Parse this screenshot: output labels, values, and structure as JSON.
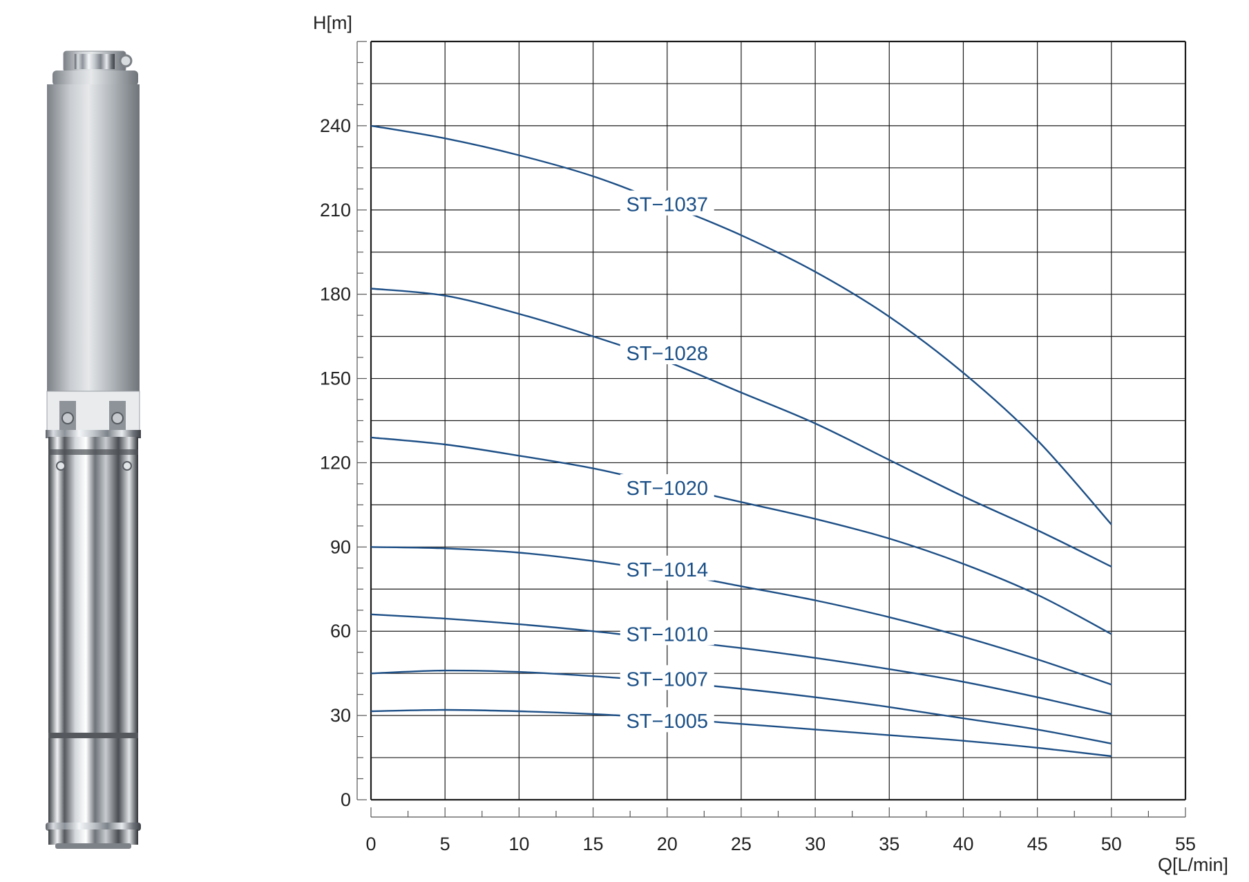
{
  "colors": {
    "curve": "#1d4f86",
    "grid": "#1a1a1a",
    "label": "#1a4f86",
    "text": "#222222"
  },
  "image": {
    "subject": "stainless steel submersible pump"
  },
  "chart_data": {
    "type": "line",
    "title": "",
    "xlabel": "Q[L/min]",
    "ylabel": "H[m]",
    "xlim": [
      0,
      55
    ],
    "ylim": [
      0,
      270
    ],
    "x_ticks": [
      0,
      5,
      10,
      15,
      20,
      25,
      30,
      35,
      40,
      45,
      50,
      55
    ],
    "y_ticks": [
      0,
      30,
      60,
      90,
      120,
      150,
      180,
      210,
      240
    ],
    "grid": true,
    "legend": "inline labels",
    "series": [
      {
        "name": "ST−1037",
        "label_at": [
          20,
          212
        ],
        "x": [
          0,
          5,
          10,
          15,
          20,
          25,
          30,
          35,
          40,
          45,
          50
        ],
        "y": [
          240,
          235.5,
          229.5,
          222,
          212,
          201,
          188,
          172,
          152,
          128,
          98
        ]
      },
      {
        "name": "ST−1028",
        "label_at": [
          20,
          159
        ],
        "x": [
          0,
          5,
          10,
          15,
          20,
          25,
          30,
          35,
          40,
          45,
          50
        ],
        "y": [
          182,
          179.5,
          173,
          165,
          156,
          145,
          134,
          121,
          108,
          96,
          83
        ]
      },
      {
        "name": "ST−1020",
        "label_at": [
          20,
          111
        ],
        "x": [
          0,
          5,
          10,
          15,
          20,
          25,
          30,
          35,
          40,
          45,
          50
        ],
        "y": [
          129,
          126.5,
          122.5,
          118,
          112,
          106,
          100,
          93,
          84,
          73,
          59
        ]
      },
      {
        "name": "ST−1014",
        "label_at": [
          20,
          82
        ],
        "x": [
          0,
          5,
          10,
          15,
          20,
          25,
          30,
          35,
          40,
          45,
          50
        ],
        "y": [
          90,
          89.5,
          88,
          85,
          81,
          76,
          71,
          65,
          58,
          50,
          41
        ]
      },
      {
        "name": "ST−1010",
        "label_at": [
          20,
          59
        ],
        "x": [
          0,
          5,
          10,
          15,
          20,
          25,
          30,
          35,
          40,
          45,
          50
        ],
        "y": [
          66,
          64.5,
          62.5,
          60,
          57,
          54,
          50.5,
          46.5,
          42,
          36.5,
          30.5
        ]
      },
      {
        "name": "ST−1007",
        "label_at": [
          20,
          43
        ],
        "x": [
          0,
          5,
          10,
          15,
          20,
          25,
          30,
          35,
          40,
          45,
          50
        ],
        "y": [
          45,
          46,
          45.5,
          44,
          42,
          39.5,
          36.5,
          33,
          29,
          25,
          20
        ]
      },
      {
        "name": "ST−1005",
        "label_at": [
          20,
          28
        ],
        "x": [
          0,
          5,
          10,
          15,
          20,
          25,
          30,
          35,
          40,
          45,
          50
        ],
        "y": [
          31.5,
          32,
          31.5,
          30.5,
          29,
          27,
          25,
          23,
          21,
          18.5,
          15.5
        ]
      }
    ]
  }
}
